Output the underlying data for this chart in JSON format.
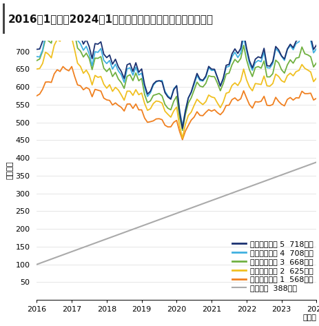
{
  "title": "2016年1月から2024年1月までのパフォーマンス（円建て）",
  "ylabel": "（万円）",
  "xlabel": "（年）",
  "background_color": "#ffffff",
  "plot_bg_color": "#ffffff",
  "ylim": [
    0,
    730
  ],
  "yticks": [
    0,
    50,
    100,
    150,
    200,
    250,
    300,
    350,
    400,
    450,
    500,
    550,
    600,
    650,
    700
  ],
  "xticks": [
    0,
    12,
    24,
    36,
    48,
    60,
    72,
    84,
    96
  ],
  "xticklabels": [
    "2016",
    "2017",
    "2018",
    "2019",
    "2020",
    "2021",
    "2022",
    "2023",
    "2024"
  ],
  "n_months": 97,
  "series_colors": [
    "#1a3070",
    "#40b0e0",
    "#70b040",
    "#f0c020",
    "#f08020",
    "#aaaaaa"
  ],
  "series_labels": [
    "リスク許容度 5",
    "リスク許容度 4",
    "リスク許容度 3",
    "リスク許容度 2",
    "リスク許容度 1",
    "累積元本"
  ],
  "series_end_values": [
    718,
    708,
    668,
    625,
    568,
    388
  ],
  "title_fontsize": 11,
  "axis_fontsize": 8,
  "legend_fontsize": 8
}
